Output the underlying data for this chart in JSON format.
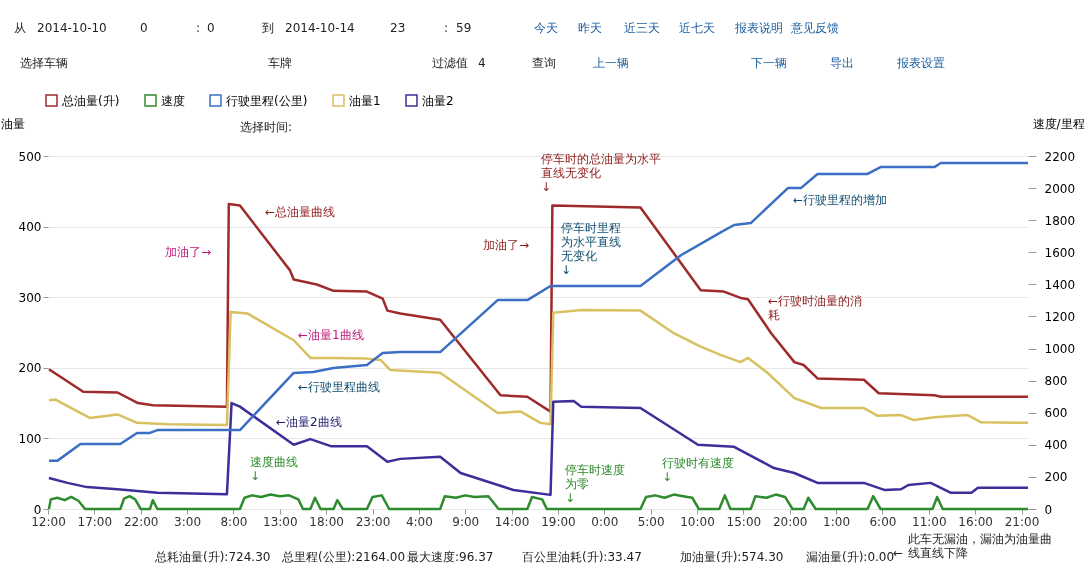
{
  "chart_data": {
    "type": "line",
    "ylabel": "油量",
    "y2label": "速度/里程",
    "legend": "top left",
    "grid": "y",
    "line_style": "solid",
    "marker": "none",
    "xlim": [
      "2014-10-10T12:00",
      "2014-10-14T21:42"
    ],
    "xticks": [
      {
        "value": "2014-10-10T12:00",
        "label": "12:00"
      },
      {
        "value": "2014-10-10T17:00",
        "label": "17:00"
      },
      {
        "value": "2014-10-10T22:00",
        "label": "22:00"
      },
      {
        "value": "2014-10-11T03:00",
        "label": "3:00"
      },
      {
        "value": "2014-10-11T08:00",
        "label": "8:00"
      },
      {
        "value": "2014-10-11T13:00",
        "label": "13:00"
      },
      {
        "value": "2014-10-11T18:00",
        "label": "18:00"
      },
      {
        "value": "2014-10-11T23:00",
        "label": "23:00"
      },
      {
        "value": "2014-10-12T04:00",
        "label": "4:00"
      },
      {
        "value": "2014-10-12T09:00",
        "label": "9:00"
      },
      {
        "value": "2014-10-12T14:00",
        "label": "14:00"
      },
      {
        "value": "2014-10-12T19:00",
        "label": "19:00"
      },
      {
        "value": "2014-10-13T00:00",
        "label": "0:00"
      },
      {
        "value": "2014-10-13T05:00",
        "label": "5:00"
      },
      {
        "value": "2014-10-13T10:00",
        "label": "10:00"
      },
      {
        "value": "2014-10-13T15:00",
        "label": "15:00"
      },
      {
        "value": "2014-10-13T20:00",
        "label": "20:00"
      },
      {
        "value": "2014-10-14T01:00",
        "label": "1:00"
      },
      {
        "value": "2014-10-14T06:00",
        "label": "6:00"
      },
      {
        "value": "2014-10-14T11:00",
        "label": "11:00"
      },
      {
        "value": "2014-10-14T16:00",
        "label": "16:00"
      },
      {
        "value": "2014-10-14T21:00",
        "label": "21:00"
      }
    ],
    "ylim": [
      0,
      500
    ],
    "yticks": [
      0,
      100,
      200,
      300,
      400,
      500
    ],
    "y2lim": [
      0,
      2200
    ],
    "y2ticks": [
      0,
      200,
      400,
      600,
      800,
      1000,
      1200,
      1400,
      1600,
      1800,
      2000,
      2200
    ],
    "series": [
      {
        "name": "总油量(升)",
        "color": "#9e2a2b",
        "x": [
          "2014-10-10T12:06",
          "2014-10-10T15:48",
          "2014-10-10T19:30",
          "2014-10-10T21:42",
          "2014-10-10T23:18",
          "2014-10-11T07:18",
          "2014-10-11T07:30",
          "2014-10-11T08:42",
          "2014-10-11T14:06",
          "2014-10-11T14:30",
          "2014-10-11T17:00",
          "2014-10-11T18:48",
          "2014-10-11T22:24",
          "2014-10-12T00:06",
          "2014-10-12T00:36",
          "2014-10-12T02:00",
          "2014-10-12T06:18",
          "2014-10-12T12:48",
          "2014-10-12T15:42",
          "2014-10-12T18:12",
          "2014-10-12T18:24",
          "2014-10-13T03:54",
          "2014-10-13T10:24",
          "2014-10-13T12:54",
          "2014-10-13T14:42",
          "2014-10-13T15:30",
          "2014-10-13T18:00",
          "2014-10-13T20:30",
          "2014-10-13T21:30",
          "2014-10-13T23:00",
          "2014-10-14T04:00",
          "2014-10-14T05:36",
          "2014-10-14T11:36",
          "2014-10-14T12:18",
          "2014-10-14T21:42"
        ],
        "values": [
          198,
          166,
          165,
          150,
          147,
          145,
          432,
          430,
          338,
          325,
          318,
          309,
          308,
          298,
          281,
          277,
          268,
          161,
          159,
          138,
          430,
          427,
          310,
          308,
          299,
          297,
          249,
          208,
          204,
          185,
          183,
          164,
          161,
          159,
          159
        ]
      },
      {
        "name": "速度",
        "color": "#2e8b2e",
        "axis": "y2",
        "x": [
          "2014-10-10T12:06",
          "2014-10-10T12:18",
          "2014-10-10T13:00",
          "2014-10-10T13:48",
          "2014-10-10T14:30",
          "2014-10-10T15:18",
          "2014-10-10T16:00",
          "2014-10-10T19:48",
          "2014-10-10T20:12",
          "2014-10-10T20:48",
          "2014-10-10T21:24",
          "2014-10-10T22:00",
          "2014-10-10T23:00",
          "2014-10-10T23:18",
          "2014-10-10T23:48",
          "2014-10-11T08:42",
          "2014-10-11T09:12",
          "2014-10-11T10:00",
          "2014-10-11T11:00",
          "2014-10-11T12:00",
          "2014-10-11T13:00",
          "2014-10-11T14:00",
          "2014-10-11T15:00",
          "2014-10-11T15:30",
          "2014-10-11T16:18",
          "2014-10-11T16:48",
          "2014-10-11T17:24",
          "2014-10-11T18:48",
          "2014-10-11T19:12",
          "2014-10-11T19:48",
          "2014-10-11T22:24",
          "2014-10-11T23:00",
          "2014-10-12T00:00",
          "2014-10-12T00:48",
          "2014-10-12T06:18",
          "2014-10-12T06:48",
          "2014-10-12T08:00",
          "2014-10-12T09:00",
          "2014-10-12T10:00",
          "2014-10-12T11:30",
          "2014-10-12T12:36",
          "2014-10-12T15:42",
          "2014-10-12T16:12",
          "2014-10-12T17:18",
          "2014-10-12T17:48",
          "2014-10-13T03:54",
          "2014-10-13T04:30",
          "2014-10-13T05:30",
          "2014-10-13T06:30",
          "2014-10-13T07:30",
          "2014-10-13T08:30",
          "2014-10-13T09:30",
          "2014-10-13T10:12",
          "2014-10-13T12:24",
          "2014-10-13T13:00",
          "2014-10-13T13:36",
          "2014-10-13T15:48",
          "2014-10-13T16:18",
          "2014-10-13T17:30",
          "2014-10-13T18:30",
          "2014-10-13T19:30",
          "2014-10-13T20:18",
          "2014-10-13T21:30",
          "2014-10-13T22:00",
          "2014-10-13T22:48",
          "2014-10-14T04:24",
          "2014-10-14T05:00",
          "2014-10-14T05:48",
          "2014-10-14T11:24",
          "2014-10-14T11:54",
          "2014-10-14T12:30",
          "2014-10-14T21:42"
        ],
        "values": [
          0,
          60,
          70,
          55,
          75,
          50,
          0,
          0,
          65,
          80,
          60,
          0,
          0,
          55,
          0,
          0,
          70,
          85,
          75,
          90,
          80,
          85,
          60,
          0,
          0,
          70,
          0,
          0,
          55,
          0,
          0,
          75,
          85,
          0,
          0,
          80,
          70,
          85,
          75,
          80,
          0,
          0,
          75,
          60,
          0,
          0,
          75,
          85,
          70,
          90,
          80,
          70,
          0,
          0,
          85,
          0,
          0,
          80,
          70,
          90,
          75,
          0,
          0,
          70,
          0,
          0,
          80,
          0,
          0,
          75,
          0,
          0
        ]
      },
      {
        "name": "行驶里程(公里)",
        "color": "#3a6fc4",
        "axis": "y2",
        "x": [
          "2014-10-10T12:06",
          "2014-10-10T13:00",
          "2014-10-10T15:30",
          "2014-10-10T19:48",
          "2014-10-10T21:36",
          "2014-10-10T23:00",
          "2014-10-10T23:48",
          "2014-10-11T08:42",
          "2014-10-11T14:30",
          "2014-10-11T16:36",
          "2014-10-11T18:48",
          "2014-10-11T22:24",
          "2014-10-12T00:06",
          "2014-10-12T02:00",
          "2014-10-12T06:18",
          "2014-10-12T12:30",
          "2014-10-12T15:42",
          "2014-10-12T18:12",
          "2014-10-13T03:54",
          "2014-10-13T08:18",
          "2014-10-13T12:36",
          "2014-10-13T14:00",
          "2014-10-13T15:48",
          "2014-10-13T19:48",
          "2014-10-13T21:12",
          "2014-10-13T23:00",
          "2014-10-14T04:24",
          "2014-10-14T05:48",
          "2014-10-14T11:36",
          "2014-10-14T12:18",
          "2014-10-14T21:42"
        ],
        "values": [
          300,
          300,
          405,
          405,
          474,
          474,
          492,
          492,
          848,
          854,
          879,
          897,
          972,
          978,
          978,
          1302,
          1302,
          1390,
          1390,
          1583,
          1726,
          1770,
          1782,
          2000,
          2000,
          2088,
          2088,
          2131,
          2131,
          2156,
          2156
        ]
      },
      {
        "name": "油量1",
        "color": "#d9c060",
        "x": [
          "2014-10-10T12:06",
          "2014-10-10T12:48",
          "2014-10-10T16:30",
          "2014-10-10T19:30",
          "2014-10-10T21:36",
          "2014-10-11T00:54",
          "2014-10-11T07:18",
          "2014-10-11T07:42",
          "2014-10-11T09:30",
          "2014-10-11T14:30",
          "2014-10-11T16:18",
          "2014-10-11T18:48",
          "2014-10-11T22:24",
          "2014-10-11T23:54",
          "2014-10-12T00:54",
          "2014-10-12T06:18",
          "2014-10-12T12:30",
          "2014-10-12T15:00",
          "2014-10-12T17:06",
          "2014-10-12T18:12",
          "2014-10-12T18:30",
          "2014-10-12T21:30",
          "2014-10-13T03:54",
          "2014-10-13T07:30",
          "2014-10-13T10:24",
          "2014-10-13T12:36",
          "2014-10-13T14:42",
          "2014-10-13T15:30",
          "2014-10-13T17:36",
          "2014-10-13T20:30",
          "2014-10-13T23:24",
          "2014-10-14T04:00",
          "2014-10-14T05:30",
          "2014-10-14T08:00",
          "2014-10-14T09:24",
          "2014-10-14T11:36",
          "2014-10-14T15:12",
          "2014-10-14T16:36",
          "2014-10-14T21:42"
        ],
        "values": [
          154,
          155,
          129,
          134,
          122,
          120,
          119,
          279,
          277,
          239,
          214,
          214,
          213,
          211,
          197,
          193,
          136,
          138,
          122,
          120,
          278,
          282,
          281,
          249,
          230,
          218,
          208,
          214,
          193,
          157,
          143,
          143,
          132,
          133,
          126,
          130,
          133,
          123,
          122
        ]
      },
      {
        "name": "油量2",
        "color": "#3b2f9a",
        "x": [
          "2014-10-10T12:06",
          "2014-10-10T14:06",
          "2014-10-10T16:12",
          "2014-10-10T19:30",
          "2014-10-10T23:48",
          "2014-10-11T07:18",
          "2014-10-11T07:48",
          "2014-10-11T08:42",
          "2014-10-11T14:30",
          "2014-10-11T16:18",
          "2014-10-11T18:30",
          "2014-10-11T22:24",
          "2014-10-12T00:36",
          "2014-10-12T02:00",
          "2014-10-12T06:18",
          "2014-10-12T08:30",
          "2014-10-12T14:12",
          "2014-10-12T18:12",
          "2014-10-12T18:30",
          "2014-10-12T20:42",
          "2014-10-12T21:30",
          "2014-10-13T03:54",
          "2014-10-13T10:06",
          "2014-10-13T14:00",
          "2014-10-13T18:18",
          "2014-10-13T20:30",
          "2014-10-13T23:00",
          "2014-10-14T04:00",
          "2014-10-14T06:12",
          "2014-10-14T08:00",
          "2014-10-14T08:48",
          "2014-10-14T11:12",
          "2014-10-14T13:24",
          "2014-10-14T15:36",
          "2014-10-14T16:18",
          "2014-10-14T21:42"
        ],
        "values": [
          44,
          37,
          31,
          28,
          23,
          21,
          150,
          145,
          91,
          99,
          89,
          89,
          67,
          71,
          74,
          51,
          27,
          20,
          152,
          153,
          145,
          143,
          91,
          88,
          58,
          51,
          37,
          37,
          27,
          28,
          34,
          37,
          23,
          23,
          30,
          30
        ]
      }
    ],
    "annotations": [
      "加油了→",
      "←总油量曲线",
      "←油量1曲线",
      "←行驶里程曲线",
      "←油量2曲线",
      "速度曲线↓",
      "加油了→",
      "停车时的总油量为水平直线无变化↓",
      "停车时里程为水平直线无变化↓",
      "←行驶时油量的消耗",
      "←行驶里程的增加",
      "停车时速度为零↓",
      "行驶时有速度↓",
      "从",
      "2014-10-10",
      "0",
      ":",
      "0",
      "到",
      "2014-10-14",
      "23",
      ":",
      "59",
      "今天",
      "昨天",
      "近三天",
      "近七天",
      "报表说明",
      "意见反馈",
      "选择车辆",
      "车牌",
      "过滤值",
      "4",
      "查询",
      "上一辆",
      "下一辆",
      "导出",
      "报表设置",
      "选择时间:",
      "总耗油量(升):724.30",
      "总里程(公里):2164.00",
      "最大速度:96.37",
      "百公里油耗(升):33.47",
      "加油量(升):574.30",
      "漏油量(升):0.00",
      "←",
      "此车无漏油，漏油为油量曲线直线下降"
    ]
  }
}
